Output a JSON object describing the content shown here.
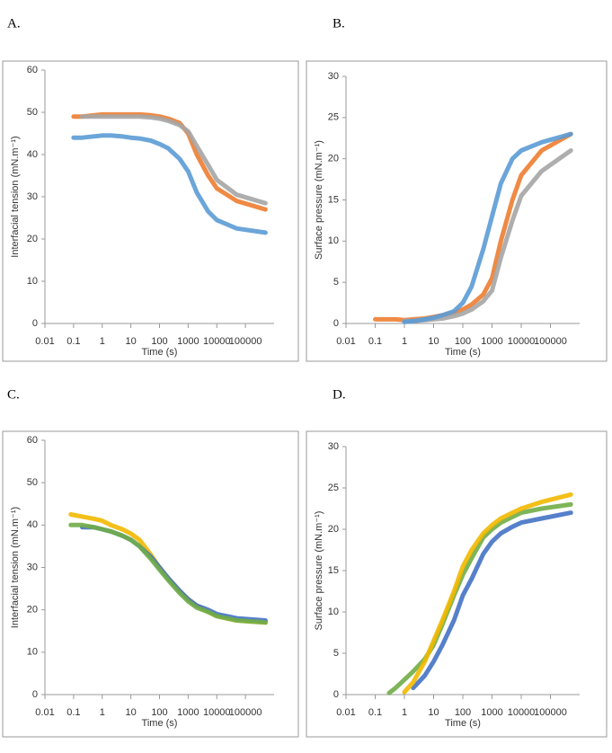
{
  "chart_data": [
    {
      "type": "line",
      "title": "A.",
      "x_label": "Time (s)",
      "y_label": "Interfacial tension (mN.m⁻¹)",
      "xscale": "log",
      "x": [
        0.1,
        0.2,
        0.5,
        1,
        2,
        5,
        10,
        20,
        50,
        100,
        200,
        500,
        1000,
        2000,
        5000,
        10000,
        50000,
        500000
      ],
      "xlim": [
        0.01,
        1000000
      ],
      "xticks": [
        0.01,
        0.1,
        1,
        10,
        100,
        1000,
        10000,
        100000
      ],
      "ylim": [
        0,
        60
      ],
      "yticks": [
        0,
        10,
        20,
        30,
        40,
        50,
        60
      ],
      "series": [
        {
          "color": "#ed7d31",
          "values": [
            49,
            49,
            49.3,
            49.5,
            49.5,
            49.5,
            49.5,
            49.5,
            49.3,
            49,
            48.5,
            47.5,
            45,
            40,
            35,
            32,
            29,
            27
          ]
        },
        {
          "color": "#a5a5a5",
          "values": [
            null,
            49,
            49,
            49,
            49,
            49,
            49,
            49,
            48.8,
            48.5,
            48,
            47,
            45.5,
            42,
            37.5,
            34,
            30.5,
            28.5
          ]
        },
        {
          "color": "#5b9bd5",
          "values": [
            44,
            44,
            44.3,
            44.5,
            44.5,
            44.3,
            44,
            43.8,
            43.3,
            42.5,
            41.5,
            39,
            36,
            31,
            26.5,
            24.5,
            22.5,
            21.5
          ]
        }
      ]
    },
    {
      "type": "line",
      "title": "B.",
      "x_label": "Time (s)",
      "y_label": "Surface pressure (mN.m⁻¹)",
      "xscale": "log",
      "x": [
        0.1,
        0.2,
        0.5,
        1,
        2,
        5,
        10,
        20,
        50,
        100,
        200,
        500,
        1000,
        2000,
        5000,
        10000,
        50000,
        500000
      ],
      "xlim": [
        0.01,
        1000000
      ],
      "xticks": [
        0.01,
        0.1,
        1,
        10,
        100,
        1000,
        10000,
        100000
      ],
      "ylim": [
        0,
        30
      ],
      "yticks": [
        0,
        5,
        10,
        15,
        20,
        25,
        30
      ],
      "series": [
        {
          "color": "#ed7d31",
          "values": [
            0.5,
            0.5,
            0.5,
            0.4,
            0.5,
            0.6,
            0.8,
            1,
            1.3,
            1.7,
            2.3,
            3.5,
            5.5,
            10,
            15,
            18,
            21,
            23
          ]
        },
        {
          "color": "#a5a5a5",
          "values": [
            null,
            null,
            null,
            0.3,
            0.3,
            0.4,
            0.5,
            0.6,
            0.9,
            1.2,
            1.7,
            2.7,
            4,
            8,
            12.5,
            15.5,
            18.5,
            21
          ]
        },
        {
          "color": "#5b9bd5",
          "values": [
            null,
            null,
            null,
            0.2,
            0.3,
            0.5,
            0.7,
            1,
            1.5,
            2.5,
            4.5,
            9,
            13,
            17,
            20,
            21,
            22,
            23
          ]
        }
      ]
    },
    {
      "type": "line",
      "title": "C.",
      "x_label": "Time (s)",
      "y_label": "Interfacial tension (mN.m⁻¹)",
      "xscale": "log",
      "x": [
        0.08,
        0.2,
        0.5,
        1,
        2,
        5,
        10,
        20,
        50,
        100,
        200,
        500,
        1000,
        2000,
        5000,
        10000,
        50000,
        500000
      ],
      "xlim": [
        0.01,
        1000000
      ],
      "xticks": [
        0.01,
        0.1,
        1,
        10,
        100,
        1000,
        10000,
        100000
      ],
      "ylim": [
        0,
        60
      ],
      "yticks": [
        0,
        10,
        20,
        30,
        40,
        50,
        60
      ],
      "series": [
        {
          "color": "#f2b800",
          "values": [
            42.5,
            42,
            41.5,
            41,
            40,
            39,
            38,
            36.5,
            33,
            30,
            27.5,
            24.5,
            22.5,
            21,
            19.5,
            18.5,
            17.5,
            17
          ]
        },
        {
          "color": "#4472c4",
          "values": [
            null,
            39.5,
            39.5,
            39,
            38.5,
            37.5,
            36.5,
            35,
            32.5,
            30,
            27.5,
            24.5,
            22.5,
            21,
            20,
            19,
            18,
            17.5
          ]
        },
        {
          "color": "#70ad47",
          "values": [
            40,
            40,
            39.5,
            39,
            38.5,
            37.5,
            36.5,
            35,
            32,
            29.5,
            27,
            24,
            22,
            20.5,
            19.5,
            18.5,
            17.5,
            17
          ]
        }
      ]
    },
    {
      "type": "line",
      "title": "D.",
      "x_label": "Time (s)",
      "y_label": "Surface pressure (mN.m⁻¹)",
      "xscale": "log",
      "x": [
        0.3,
        0.5,
        1,
        2,
        5,
        10,
        20,
        50,
        100,
        200,
        500,
        1000,
        2000,
        5000,
        10000,
        50000,
        500000
      ],
      "xlim": [
        0.01,
        1000000
      ],
      "xticks": [
        0.01,
        0.1,
        1,
        10,
        100,
        1000,
        10000,
        100000
      ],
      "ylim": [
        0,
        30
      ],
      "yticks": [
        0,
        5,
        10,
        15,
        20,
        25,
        30
      ],
      "series": [
        {
          "color": "#4472c4",
          "values": [
            null,
            null,
            null,
            0.8,
            2.3,
            4,
            6,
            9,
            12,
            14,
            17,
            18.5,
            19.5,
            20.3,
            20.8,
            21.3,
            22
          ]
        },
        {
          "color": "#70ad47",
          "values": [
            0.2,
            0.8,
            1.8,
            2.8,
            4.3,
            6,
            8.5,
            12,
            14.5,
            16.5,
            19,
            20,
            20.8,
            21.5,
            22,
            22.5,
            23
          ]
        },
        {
          "color": "#f2b800",
          "values": [
            null,
            null,
            0.3,
            1.5,
            4,
            6.5,
            9,
            12.5,
            15.5,
            17.5,
            19.5,
            20.5,
            21.3,
            22,
            22.5,
            23.3,
            24.2
          ]
        }
      ]
    }
  ]
}
